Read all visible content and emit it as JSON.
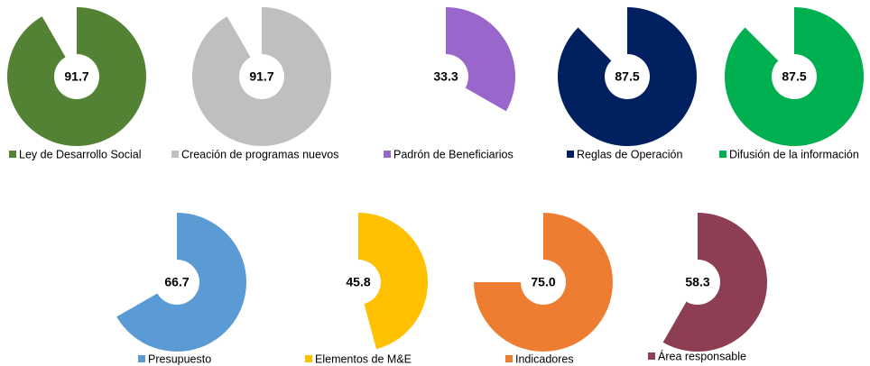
{
  "chart_data": [
    {
      "type": "donut",
      "categories": [
        "Ley de Desarrollo Social"
      ],
      "values": [
        91.7
      ],
      "color": "#548235",
      "ylim": [
        0,
        100
      ]
    },
    {
      "type": "donut",
      "categories": [
        "Creación de programas nuevos"
      ],
      "values": [
        91.7
      ],
      "color": "#bfbfbf",
      "ylim": [
        0,
        100
      ]
    },
    {
      "type": "donut",
      "categories": [
        "Padrón de Beneficiarios"
      ],
      "values": [
        33.3
      ],
      "color": "#9966cc",
      "ylim": [
        0,
        100
      ]
    },
    {
      "type": "donut",
      "categories": [
        "Reglas de Operación"
      ],
      "values": [
        87.5
      ],
      "color": "#002060",
      "ylim": [
        0,
        100
      ]
    },
    {
      "type": "donut",
      "categories": [
        "Difusión de la información"
      ],
      "values": [
        87.5
      ],
      "color": "#00b050",
      "ylim": [
        0,
        100
      ]
    },
    {
      "type": "donut",
      "categories": [
        "Presupuesto"
      ],
      "values": [
        66.7
      ],
      "color": "#5b9bd5",
      "ylim": [
        0,
        100
      ]
    },
    {
      "type": "donut",
      "categories": [
        "Elementos de M&E"
      ],
      "values": [
        45.8
      ],
      "color": "#ffc000",
      "ylim": [
        0,
        100
      ]
    },
    {
      "type": "donut",
      "categories": [
        "Indicadores"
      ],
      "values": [
        75
      ],
      "value_labels": [
        "75.0"
      ],
      "color": "#ed7d31",
      "ylim": [
        0,
        100
      ]
    },
    {
      "type": "donut",
      "categories": [
        "Área responsable"
      ],
      "values": [
        58.3
      ],
      "color": "#8e3e53",
      "ylim": [
        0,
        100
      ]
    }
  ]
}
